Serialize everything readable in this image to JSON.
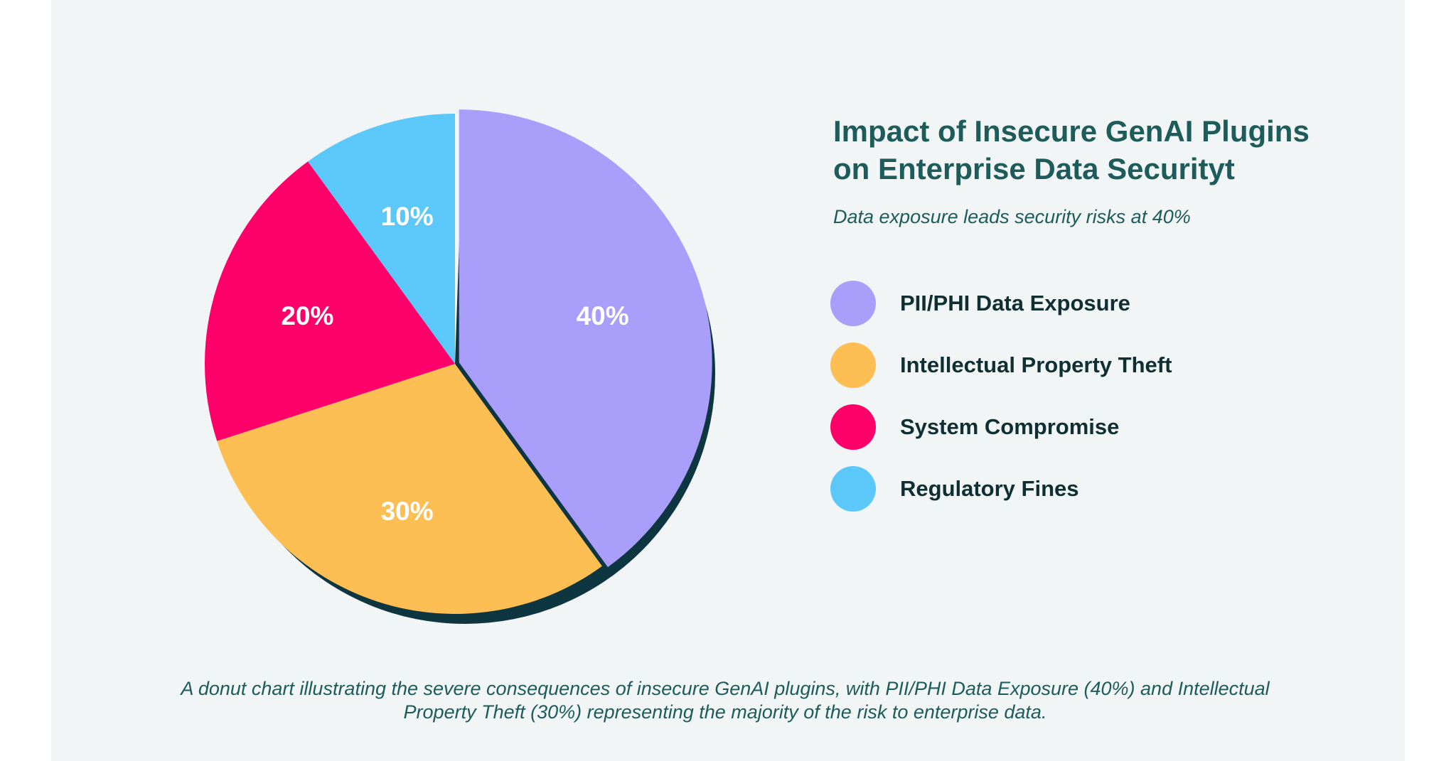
{
  "title": "Impact of Insecure GenAI Plugins on Enterprise Data Securityt",
  "subtitle": "Data exposure leads security risks at 40%",
  "caption": "A donut chart illustrating the severe consequences of insecure GenAI plugins, with PII/PHI Data Exposure (40%) and Intellectual Property Theft (30%) representing the majority of the risk to enterprise data.",
  "colors": {
    "background": "#f1f5f6",
    "shadow": "#0d3640",
    "slice_label": "#ffffff"
  },
  "chart_data": {
    "type": "pie",
    "categories": [
      "PII/PHI Data Exposure",
      "Intellectual Property Theft",
      "System Compromise",
      "Regulatory Fines"
    ],
    "values": [
      40,
      30,
      20,
      10
    ],
    "labels": [
      "40%",
      "30%",
      "20%",
      "10%"
    ],
    "colors": [
      "#a99ffb",
      "#fdbf54",
      "#ff006b",
      "#5bc8f9"
    ],
    "legend": "right"
  }
}
